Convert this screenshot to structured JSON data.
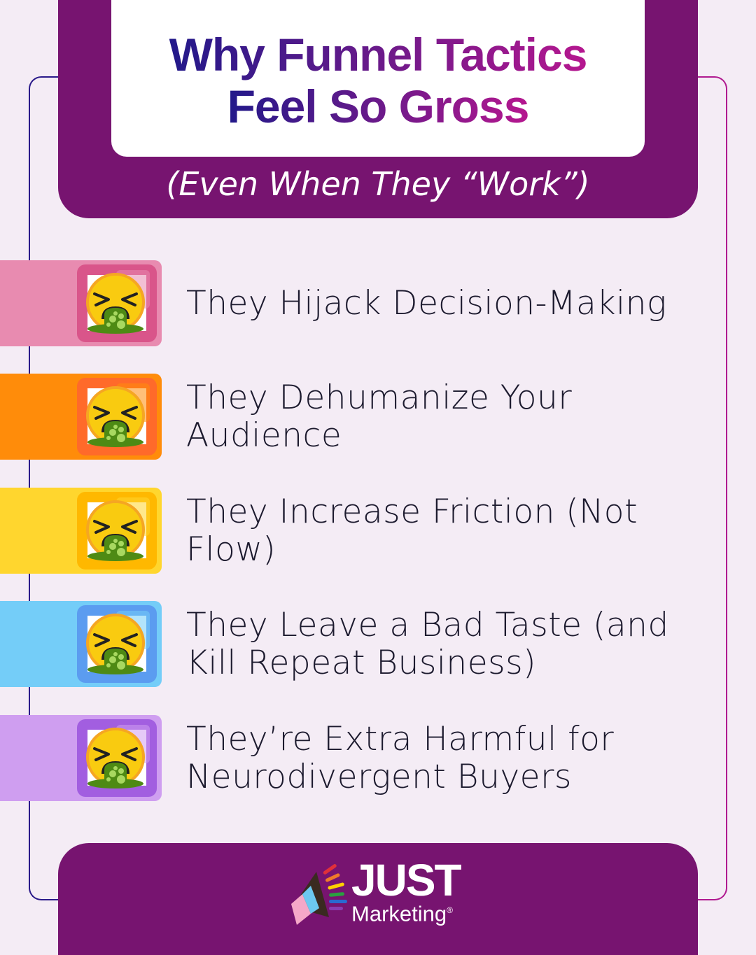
{
  "title": {
    "line1": "Why Funnel Tactics",
    "line2": "Feel So Gross"
  },
  "subtitle": "(Even When They “Work”)",
  "items": [
    {
      "label": "They Hijack Decision-Making",
      "icon": "nauseated-face-icon",
      "color": "#e88bb0",
      "accent": "#d9558a"
    },
    {
      "label": "They Dehumanize Your Audience",
      "icon": "nauseated-face-icon",
      "color": "#ff8c0a",
      "accent": "#ff6a2a"
    },
    {
      "label": "They Increase Friction (Not Flow)",
      "icon": "nauseated-face-icon",
      "color": "#ffd62e",
      "accent": "#ffb800"
    },
    {
      "label": "They Leave a Bad Taste (and Kill Repeat Business)",
      "icon": "nauseated-face-icon",
      "color": "#74cdf8",
      "accent": "#5b9cf0"
    },
    {
      "label": "They’re Extra Harmful for Neurodivergent Buyers",
      "icon": "nauseated-face-icon",
      "color": "#cf9ef0",
      "accent": "#a25ee0"
    }
  ],
  "footer": {
    "logo_word": "JUST",
    "logo_sub": "Marketing",
    "logo_mark": "®"
  },
  "colors": {
    "brand_purple": "#771470",
    "background": "#f4ecf5"
  }
}
